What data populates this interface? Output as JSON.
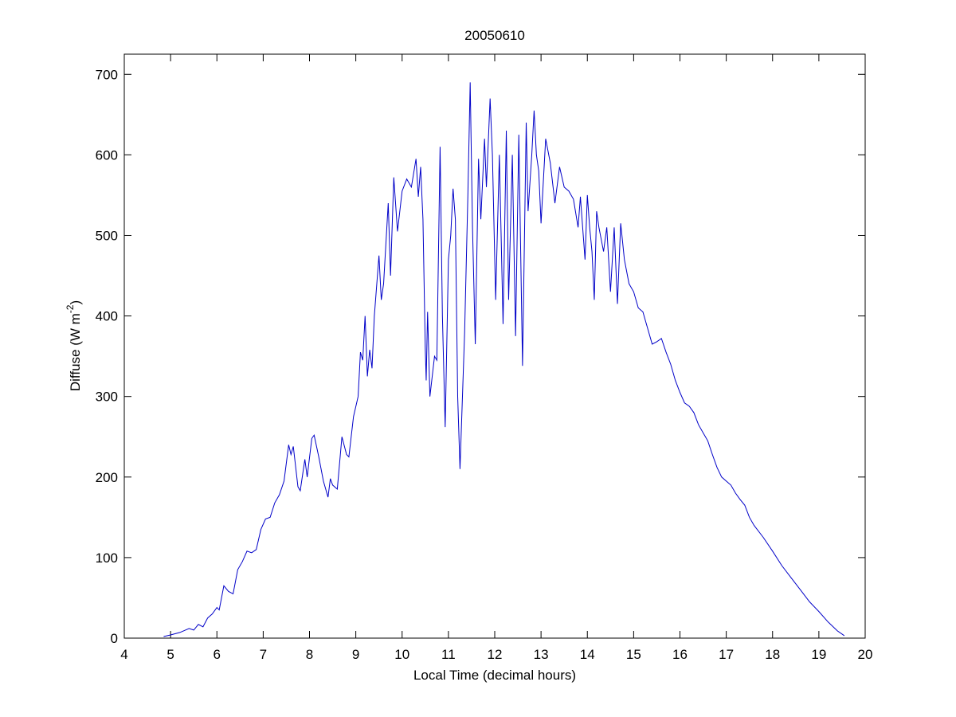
{
  "chart_data": {
    "type": "line",
    "title": "20050610",
    "xlabel": "Local Time (decimal hours)",
    "ylabel": {
      "text": "Diffuse (W m",
      "superscript": "-2",
      "suffix": ")"
    },
    "xlim": [
      4,
      20
    ],
    "xticks": [
      4,
      5,
      6,
      7,
      8,
      9,
      10,
      11,
      12,
      13,
      14,
      15,
      16,
      17,
      18,
      19,
      20
    ],
    "ylim": [
      0,
      725
    ],
    "yticks": [
      0,
      100,
      200,
      300,
      400,
      500,
      600,
      700
    ],
    "grid": false,
    "series": [
      {
        "color": "#0000c8",
        "x": [
          4.85,
          5.0,
          5.2,
          5.4,
          5.5,
          5.6,
          5.7,
          5.8,
          5.9,
          6.0,
          6.05,
          6.15,
          6.25,
          6.35,
          6.45,
          6.55,
          6.65,
          6.75,
          6.85,
          6.95,
          7.05,
          7.15,
          7.25,
          7.35,
          7.45,
          7.55,
          7.6,
          7.65,
          7.75,
          7.8,
          7.9,
          7.95,
          8.05,
          8.1,
          8.2,
          8.3,
          8.4,
          8.45,
          8.5,
          8.6,
          8.7,
          8.8,
          8.85,
          8.95,
          9.05,
          9.1,
          9.15,
          9.2,
          9.25,
          9.3,
          9.35,
          9.4,
          9.5,
          9.55,
          9.6,
          9.7,
          9.75,
          9.82,
          9.9,
          10.0,
          10.1,
          10.2,
          10.3,
          10.35,
          10.4,
          10.45,
          10.5,
          10.52,
          10.55,
          10.6,
          10.7,
          10.75,
          10.82,
          10.87,
          10.93,
          11.0,
          11.05,
          11.1,
          11.15,
          11.2,
          11.25,
          11.35,
          11.42,
          11.47,
          11.52,
          11.58,
          11.65,
          11.7,
          11.78,
          11.82,
          11.9,
          11.95,
          12.02,
          12.1,
          12.18,
          12.25,
          12.3,
          12.38,
          12.45,
          12.52,
          12.6,
          12.68,
          12.72,
          12.8,
          12.85,
          12.9,
          12.95,
          13.0,
          13.1,
          13.2,
          13.3,
          13.4,
          13.5,
          13.6,
          13.7,
          13.8,
          13.85,
          13.95,
          14.0,
          14.05,
          14.1,
          14.15,
          14.2,
          14.25,
          14.35,
          14.42,
          14.5,
          14.58,
          14.65,
          14.72,
          14.8,
          14.9,
          15.0,
          15.1,
          15.2,
          15.3,
          15.4,
          15.5,
          15.6,
          15.7,
          15.8,
          15.9,
          16.0,
          16.1,
          16.2,
          16.3,
          16.4,
          16.5,
          16.6,
          16.7,
          16.8,
          16.9,
          17.0,
          17.1,
          17.2,
          17.3,
          17.4,
          17.5,
          17.6,
          17.8,
          18.0,
          18.2,
          18.4,
          18.6,
          18.8,
          19.0,
          19.2,
          19.4,
          19.55
        ],
        "values": [
          2,
          4,
          7,
          12,
          10,
          17,
          14,
          25,
          30,
          38,
          35,
          65,
          58,
          55,
          85,
          95,
          108,
          106,
          110,
          135,
          148,
          150,
          168,
          178,
          195,
          240,
          228,
          238,
          188,
          183,
          222,
          200,
          248,
          252,
          225,
          195,
          175,
          198,
          190,
          185,
          250,
          228,
          225,
          275,
          300,
          355,
          345,
          400,
          325,
          358,
          335,
          400,
          475,
          420,
          440,
          540,
          450,
          572,
          505,
          555,
          570,
          560,
          595,
          548,
          585,
          520,
          360,
          320,
          405,
          300,
          350,
          345,
          610,
          400,
          262,
          470,
          500,
          558,
          520,
          300,
          210,
          380,
          550,
          690,
          510,
          365,
          595,
          520,
          620,
          560,
          670,
          600,
          420,
          600,
          390,
          630,
          420,
          600,
          375,
          625,
          338,
          640,
          530,
          600,
          655,
          600,
          580,
          515,
          620,
          590,
          540,
          585,
          560,
          555,
          545,
          510,
          548,
          470,
          550,
          510,
          480,
          420,
          530,
          510,
          480,
          510,
          430,
          510,
          415,
          515,
          470,
          440,
          430,
          410,
          405,
          385,
          365,
          368,
          372,
          355,
          340,
          320,
          305,
          292,
          288,
          280,
          265,
          255,
          245,
          228,
          212,
          200,
          195,
          190,
          180,
          172,
          165,
          150,
          140,
          125,
          108,
          90,
          75,
          60,
          45,
          33,
          20,
          9,
          3
        ]
      }
    ]
  }
}
